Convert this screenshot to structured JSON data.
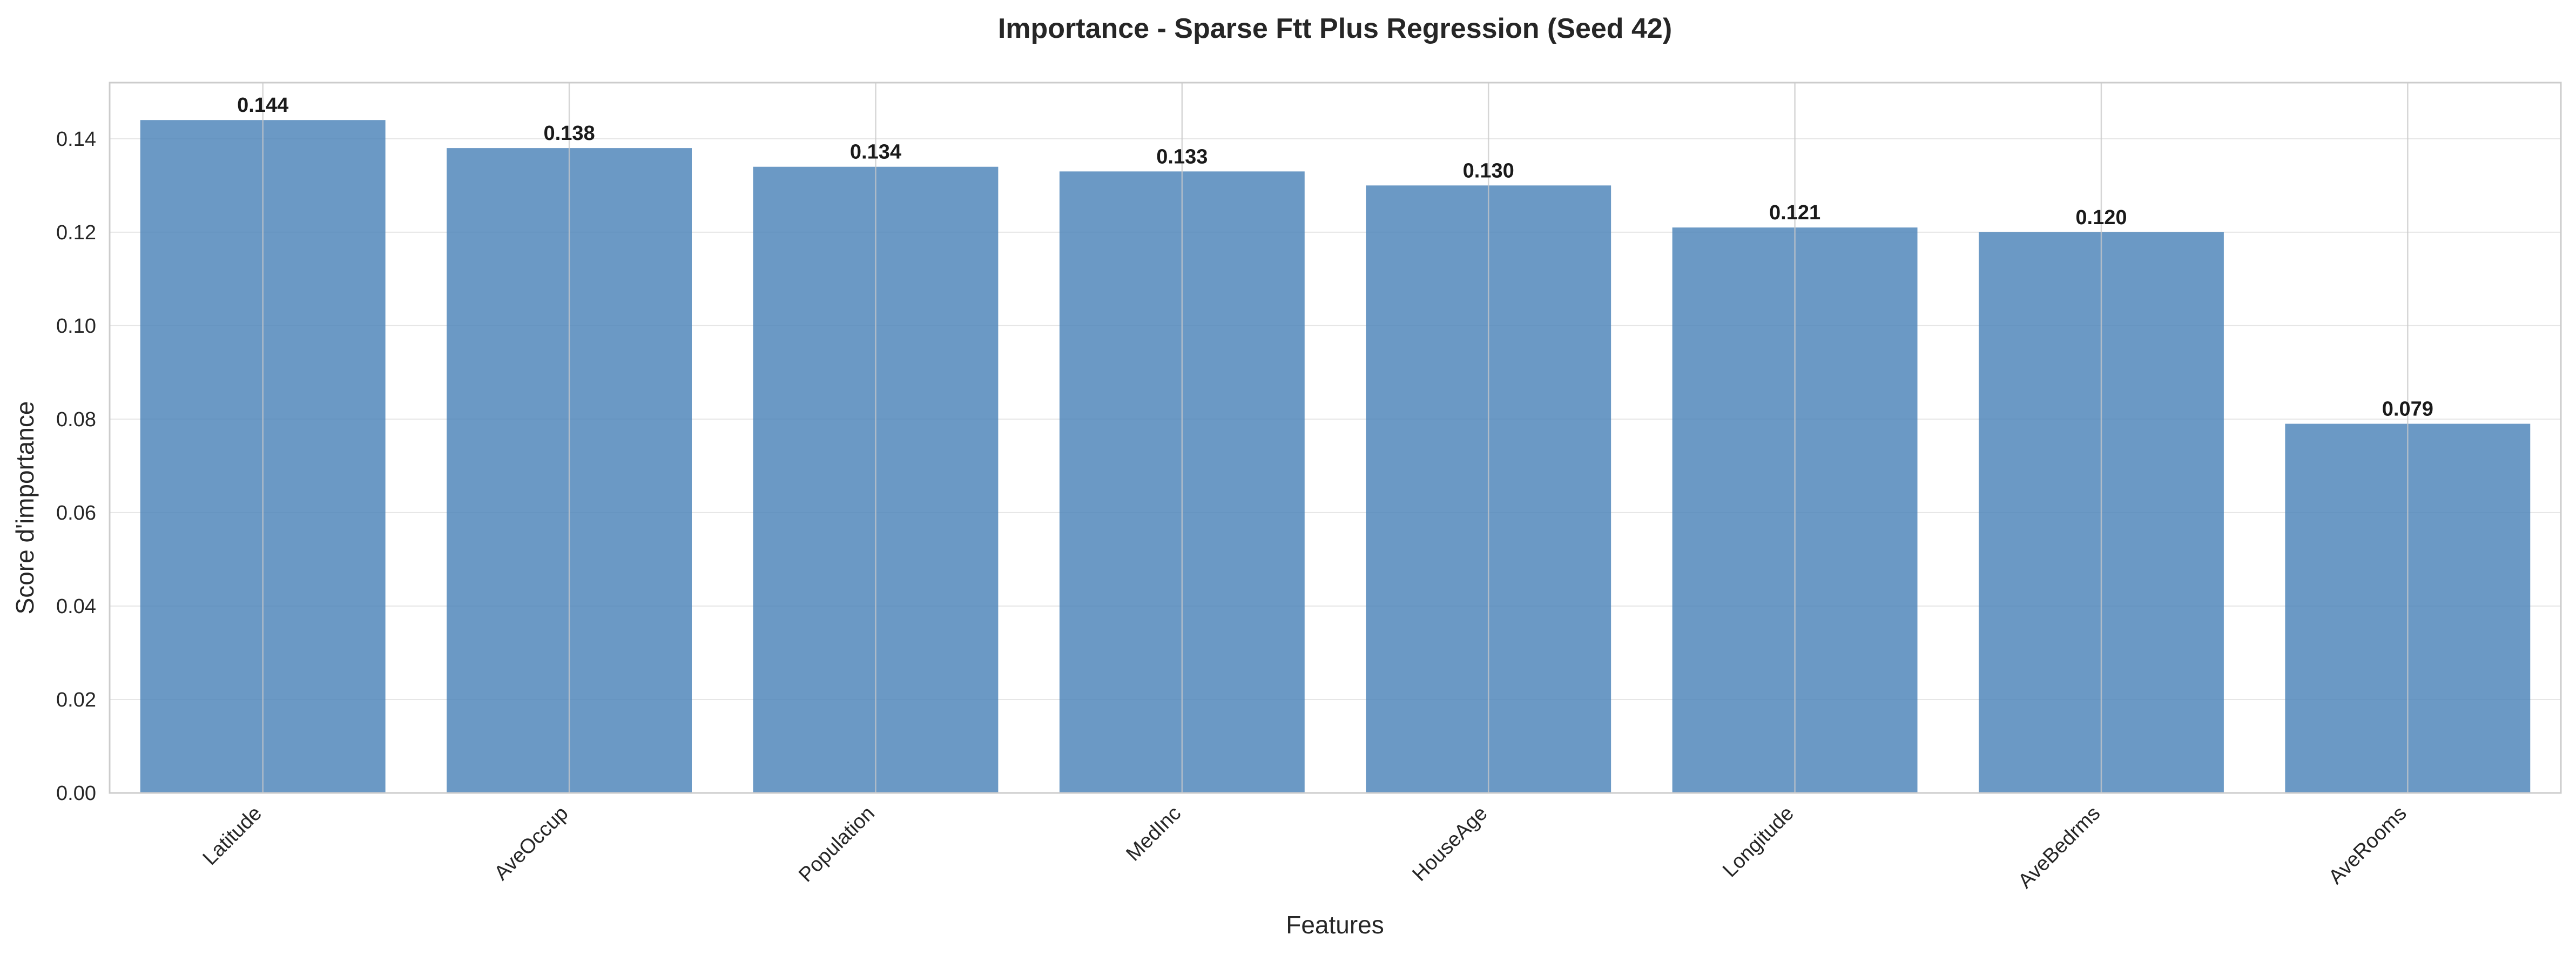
{
  "chart_data": {
    "type": "bar",
    "title": "Importance - Sparse Ftt Plus Regression (Seed 42)",
    "xlabel": "Features",
    "ylabel": "Score d'importance",
    "categories": [
      "Latitude",
      "AveOccup",
      "Population",
      "MedInc",
      "HouseAge",
      "Longitude",
      "AveBedrms",
      "AveRooms"
    ],
    "values": [
      0.144,
      0.138,
      0.134,
      0.133,
      0.13,
      0.121,
      0.12,
      0.079
    ],
    "value_labels": [
      "0.144",
      "0.138",
      "0.134",
      "0.133",
      "0.130",
      "0.121",
      "0.120",
      "0.079"
    ],
    "ylim": [
      0,
      0.152
    ],
    "yticks": [
      0,
      0.02,
      0.04,
      0.06,
      0.08,
      0.1,
      0.12,
      0.14
    ],
    "ytick_labels": [
      "0.00",
      "0.02",
      "0.04",
      "0.06",
      "0.08",
      "0.10",
      "0.12",
      "0.14"
    ],
    "grid": true,
    "colors": {
      "bar": "#4a83b8",
      "grid": "#e6e6e6",
      "frame": "#cccccc"
    }
  }
}
